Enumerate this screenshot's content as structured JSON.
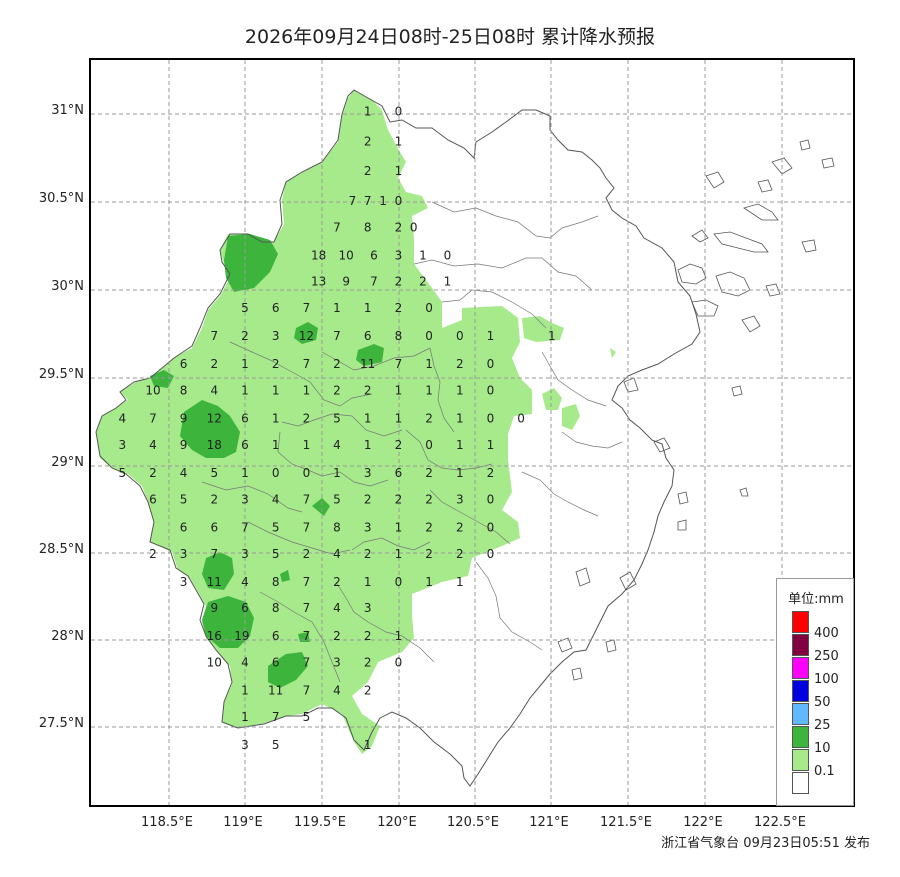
{
  "title": "2026年09月24日08时-25日08时 累计降水预报",
  "publisher": "浙江省气象台 09月23日05:51 发布",
  "colors": {
    "light_green": "#a6ea8c",
    "dark_green": "#3db53d",
    "frame": "#000000",
    "grid": "#999999",
    "boundary": "#555555"
  },
  "axes": {
    "lat_labels": [
      "31°N",
      "30.5°N",
      "30°N",
      "29.5°N",
      "29°N",
      "28.5°N",
      "28°N",
      "27.5°N"
    ],
    "lon_labels": [
      "118.5°E",
      "119°E",
      "119.5°E",
      "120°E",
      "120.5°E",
      "121°E",
      "121.5°E",
      "122°E",
      "122.5°E"
    ]
  },
  "legend": {
    "title": "单位:mm",
    "items": [
      {
        "label": "400",
        "color": "#ff0000"
      },
      {
        "label": "250",
        "color": "#800040"
      },
      {
        "label": "100",
        "color": "#ff00ff"
      },
      {
        "label": "50",
        "color": "#0000e0"
      },
      {
        "label": "25",
        "color": "#60b8ff"
      },
      {
        "label": "10",
        "color": "#3db53d"
      },
      {
        "label": "0.1",
        "color": "#a6ea8c"
      },
      {
        "label": "",
        "color": "#ffffff"
      }
    ]
  },
  "rows": [
    {
      "lat": 31.02,
      "cells": [
        [
          119.8,
          "1"
        ],
        [
          120.0,
          "0"
        ]
      ]
    },
    {
      "lat": 30.85,
      "cells": [
        [
          119.8,
          "2"
        ],
        [
          120.0,
          "1"
        ]
      ]
    },
    {
      "lat": 30.68,
      "cells": [
        [
          119.8,
          "2"
        ],
        [
          120.0,
          "1"
        ]
      ]
    },
    {
      "lat": 30.51,
      "cells": [
        [
          119.7,
          "7"
        ],
        [
          119.8,
          "7"
        ],
        [
          119.9,
          "1"
        ],
        [
          120.0,
          "0"
        ]
      ]
    },
    {
      "lat": 30.36,
      "cells": [
        [
          119.6,
          "7"
        ],
        [
          119.8,
          "8"
        ],
        [
          120.0,
          "2"
        ],
        [
          120.1,
          "0"
        ]
      ]
    },
    {
      "lat": 30.2,
      "cells": [
        [
          119.48,
          "18"
        ],
        [
          119.66,
          "10"
        ],
        [
          119.84,
          "6"
        ],
        [
          120.0,
          "3"
        ],
        [
          120.16,
          "1"
        ],
        [
          120.32,
          "0"
        ]
      ]
    },
    {
      "lat": 30.05,
      "cells": [
        [
          119.48,
          "13"
        ],
        [
          119.66,
          "9"
        ],
        [
          119.84,
          "7"
        ],
        [
          120.0,
          "2"
        ],
        [
          120.16,
          "2"
        ],
        [
          120.32,
          "1"
        ]
      ]
    },
    {
      "lat": 29.9,
      "cells": [
        [
          119.0,
          "5"
        ],
        [
          119.2,
          "6"
        ],
        [
          119.4,
          "7"
        ],
        [
          119.6,
          "1"
        ],
        [
          119.8,
          "1"
        ],
        [
          120.0,
          "2"
        ],
        [
          120.2,
          "0"
        ]
      ]
    },
    {
      "lat": 29.74,
      "cells": [
        [
          118.8,
          "7"
        ],
        [
          119.0,
          "2"
        ],
        [
          119.2,
          "3"
        ],
        [
          119.4,
          "12"
        ],
        [
          119.6,
          "7"
        ],
        [
          119.8,
          "6"
        ],
        [
          120.0,
          "8"
        ],
        [
          120.2,
          "0"
        ],
        [
          120.4,
          "0"
        ],
        [
          120.6,
          "1"
        ],
        [
          121.0,
          "1"
        ]
      ]
    },
    {
      "lat": 29.58,
      "cells": [
        [
          118.6,
          "6"
        ],
        [
          118.8,
          "2"
        ],
        [
          119.0,
          "1"
        ],
        [
          119.2,
          "2"
        ],
        [
          119.4,
          "7"
        ],
        [
          119.6,
          "2"
        ],
        [
          119.8,
          "11"
        ],
        [
          120.0,
          "7"
        ],
        [
          120.2,
          "1"
        ],
        [
          120.4,
          "2"
        ],
        [
          120.6,
          "0"
        ]
      ]
    },
    {
      "lat": 29.43,
      "cells": [
        [
          118.4,
          "10"
        ],
        [
          118.6,
          "8"
        ],
        [
          118.8,
          "4"
        ],
        [
          119.0,
          "1"
        ],
        [
          119.2,
          "1"
        ],
        [
          119.4,
          "1"
        ],
        [
          119.6,
          "2"
        ],
        [
          119.8,
          "2"
        ],
        [
          120.0,
          "1"
        ],
        [
          120.2,
          "1"
        ],
        [
          120.4,
          "1"
        ],
        [
          120.6,
          "0"
        ]
      ]
    },
    {
      "lat": 29.27,
      "cells": [
        [
          118.2,
          "4"
        ],
        [
          118.4,
          "7"
        ],
        [
          118.6,
          "9"
        ],
        [
          118.8,
          "12"
        ],
        [
          119.0,
          "6"
        ],
        [
          119.2,
          "1"
        ],
        [
          119.4,
          "2"
        ],
        [
          119.6,
          "5"
        ],
        [
          119.8,
          "1"
        ],
        [
          120.0,
          "1"
        ],
        [
          120.2,
          "2"
        ],
        [
          120.4,
          "1"
        ],
        [
          120.6,
          "0"
        ],
        [
          120.8,
          "0"
        ]
      ]
    },
    {
      "lat": 29.12,
      "cells": [
        [
          118.2,
          "3"
        ],
        [
          118.4,
          "4"
        ],
        [
          118.6,
          "9"
        ],
        [
          118.8,
          "18"
        ],
        [
          119.0,
          "6"
        ],
        [
          119.2,
          "1"
        ],
        [
          119.4,
          "1"
        ],
        [
          119.6,
          "4"
        ],
        [
          119.8,
          "1"
        ],
        [
          120.0,
          "2"
        ],
        [
          120.2,
          "0"
        ],
        [
          120.4,
          "1"
        ],
        [
          120.6,
          "1"
        ]
      ]
    },
    {
      "lat": 28.96,
      "cells": [
        [
          118.2,
          "5"
        ],
        [
          118.4,
          "2"
        ],
        [
          118.6,
          "4"
        ],
        [
          118.8,
          "5"
        ],
        [
          119.0,
          "1"
        ],
        [
          119.2,
          "0"
        ],
        [
          119.4,
          "0"
        ],
        [
          119.6,
          "1"
        ],
        [
          119.8,
          "3"
        ],
        [
          120.0,
          "6"
        ],
        [
          120.2,
          "2"
        ],
        [
          120.4,
          "1"
        ],
        [
          120.6,
          "2"
        ]
      ]
    },
    {
      "lat": 28.81,
      "cells": [
        [
          118.4,
          "6"
        ],
        [
          118.6,
          "5"
        ],
        [
          118.8,
          "2"
        ],
        [
          119.0,
          "3"
        ],
        [
          119.2,
          "4"
        ],
        [
          119.4,
          "7"
        ],
        [
          119.6,
          "5"
        ],
        [
          119.8,
          "2"
        ],
        [
          120.0,
          "2"
        ],
        [
          120.2,
          "2"
        ],
        [
          120.4,
          "3"
        ],
        [
          120.6,
          "0"
        ]
      ]
    },
    {
      "lat": 28.65,
      "cells": [
        [
          118.6,
          "6"
        ],
        [
          118.8,
          "6"
        ],
        [
          119.0,
          "7"
        ],
        [
          119.2,
          "5"
        ],
        [
          119.4,
          "7"
        ],
        [
          119.6,
          "8"
        ],
        [
          119.8,
          "3"
        ],
        [
          120.0,
          "1"
        ],
        [
          120.2,
          "2"
        ],
        [
          120.4,
          "2"
        ],
        [
          120.6,
          "0"
        ]
      ]
    },
    {
      "lat": 28.5,
      "cells": [
        [
          118.4,
          "2"
        ],
        [
          118.6,
          "3"
        ],
        [
          118.8,
          "7"
        ],
        [
          119.0,
          "3"
        ],
        [
          119.2,
          "5"
        ],
        [
          119.4,
          "2"
        ],
        [
          119.6,
          "4"
        ],
        [
          119.8,
          "2"
        ],
        [
          120.0,
          "1"
        ],
        [
          120.2,
          "2"
        ],
        [
          120.4,
          "2"
        ],
        [
          120.6,
          "0"
        ]
      ]
    },
    {
      "lat": 28.34,
      "cells": [
        [
          118.6,
          "3"
        ],
        [
          118.8,
          "11"
        ],
        [
          119.0,
          "4"
        ],
        [
          119.2,
          "8"
        ],
        [
          119.4,
          "7"
        ],
        [
          119.6,
          "2"
        ],
        [
          119.8,
          "1"
        ],
        [
          120.0,
          "0"
        ],
        [
          120.2,
          "1"
        ],
        [
          120.4,
          "1"
        ]
      ]
    },
    {
      "lat": 28.19,
      "cells": [
        [
          118.8,
          "9"
        ],
        [
          119.0,
          "6"
        ],
        [
          119.2,
          "8"
        ],
        [
          119.4,
          "7"
        ],
        [
          119.6,
          "4"
        ],
        [
          119.8,
          "3"
        ]
      ]
    },
    {
      "lat": 28.03,
      "cells": [
        [
          118.8,
          "16"
        ],
        [
          118.98,
          "19"
        ],
        [
          119.2,
          "6"
        ],
        [
          119.4,
          "7"
        ],
        [
          119.6,
          "2"
        ],
        [
          119.8,
          "2"
        ],
        [
          120.0,
          "1"
        ]
      ]
    },
    {
      "lat": 27.88,
      "cells": [
        [
          118.8,
          "10"
        ],
        [
          119.0,
          "4"
        ],
        [
          119.2,
          "6"
        ],
        [
          119.4,
          "7"
        ],
        [
          119.6,
          "3"
        ],
        [
          119.8,
          "2"
        ],
        [
          120.0,
          "0"
        ]
      ]
    },
    {
      "lat": 27.72,
      "cells": [
        [
          119.0,
          "1"
        ],
        [
          119.2,
          "11"
        ],
        [
          119.4,
          "7"
        ],
        [
          119.6,
          "4"
        ],
        [
          119.8,
          "2"
        ]
      ]
    },
    {
      "lat": 27.57,
      "cells": [
        [
          119.0,
          "1"
        ],
        [
          119.2,
          "7"
        ],
        [
          119.4,
          "5"
        ]
      ]
    },
    {
      "lat": 27.41,
      "cells": [
        [
          119.0,
          "3"
        ],
        [
          119.2,
          "5"
        ],
        [
          119.8,
          "1"
        ]
      ]
    }
  ]
}
